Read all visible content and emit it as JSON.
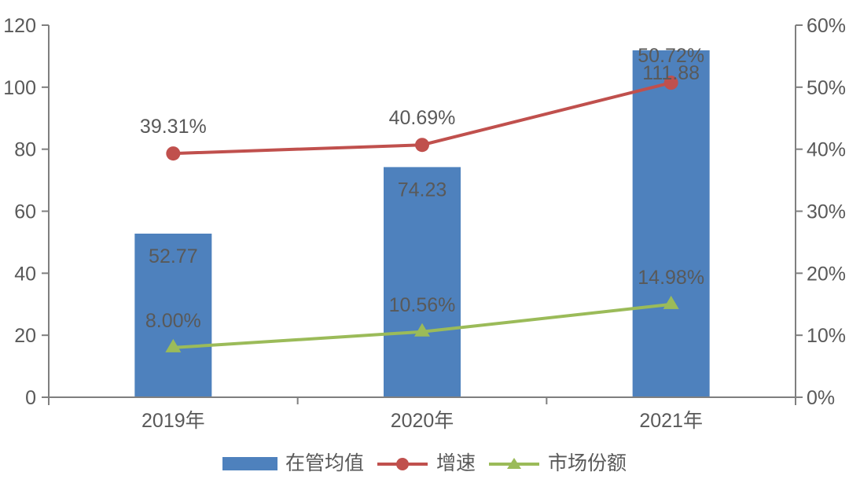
{
  "chart_data": {
    "type": "combo-bar-line",
    "title": "",
    "categories": [
      "2019年",
      "2020年",
      "2021年"
    ],
    "series": [
      {
        "name": "在管均值",
        "type": "bar",
        "axis": "left",
        "color": "#4E81BD",
        "values": [
          52.77,
          74.23,
          111.88
        ],
        "labels": [
          "52.77",
          "74.23",
          "111.88"
        ]
      },
      {
        "name": "增速",
        "type": "line",
        "marker": "circle",
        "axis": "right",
        "color": "#C0504D",
        "values": [
          39.31,
          40.69,
          50.72
        ],
        "labels": [
          "39.31%",
          "40.69%",
          "50.72%"
        ]
      },
      {
        "name": "市场份额",
        "type": "line",
        "marker": "triangle-up",
        "axis": "right",
        "color": "#9BBB59",
        "values": [
          8.0,
          10.56,
          14.98
        ],
        "labels": [
          "8.00%",
          "10.56%",
          "14.98%"
        ]
      }
    ],
    "left_axis": {
      "min": 0,
      "max": 120,
      "step": 20,
      "ticks": [
        "0",
        "20",
        "40",
        "60",
        "80",
        "100",
        "120"
      ]
    },
    "right_axis": {
      "min": 0,
      "max": 60,
      "step": 10,
      "ticks": [
        "0%",
        "10%",
        "20%",
        "30%",
        "40%",
        "50%",
        "60%"
      ]
    },
    "grid": false,
    "legend_position": "bottom"
  },
  "colors": {
    "bar": "#4E81BD",
    "growth_line": "#C0504D",
    "share_line": "#9BBB59",
    "axis": "#7F7F7F",
    "text": "#595959"
  }
}
